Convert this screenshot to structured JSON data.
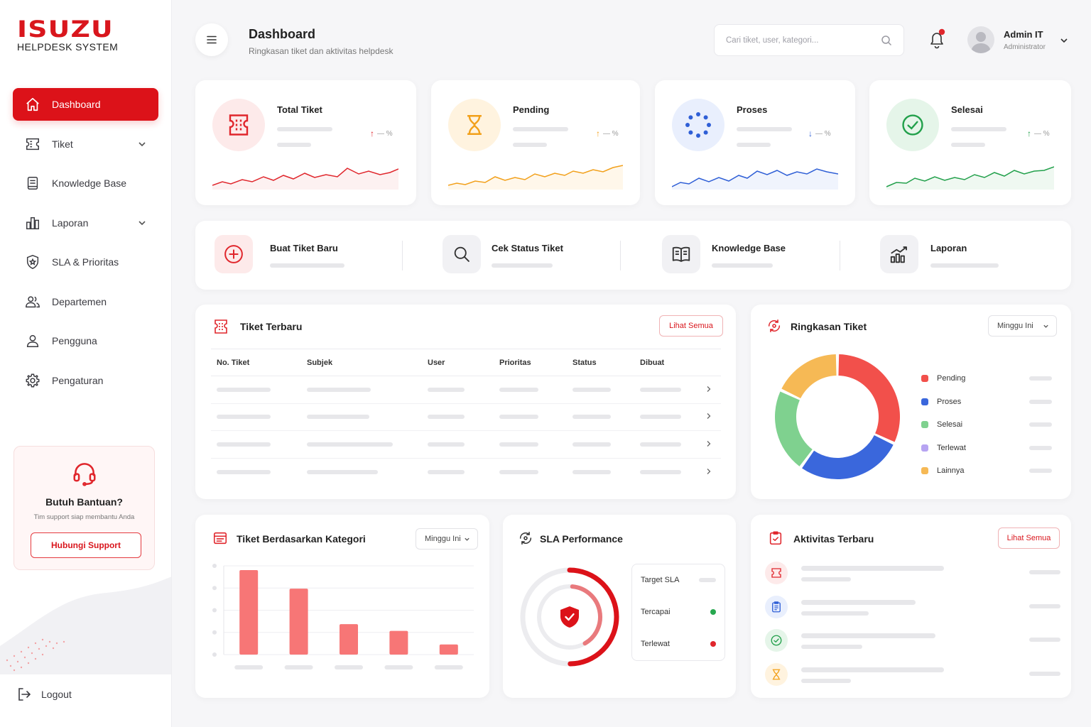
{
  "brand": {
    "logo": "ISUZU",
    "subtitle": "HELPDESK SYSTEM"
  },
  "sidebar": {
    "items": [
      {
        "label": "Dashboard",
        "icon": "home-icon",
        "active": true
      },
      {
        "label": "Tiket",
        "icon": "ticket-icon",
        "expandable": true
      },
      {
        "label": "Knowledge Base",
        "icon": "book-icon"
      },
      {
        "label": "Laporan",
        "icon": "bar-chart-icon",
        "expandable": true
      },
      {
        "label": "SLA & Prioritas",
        "icon": "shield-star-icon"
      },
      {
        "label": "Departemen",
        "icon": "users-icon"
      },
      {
        "label": "Pengguna",
        "icon": "user-icon"
      },
      {
        "label": "Pengaturan",
        "icon": "gear-icon"
      }
    ],
    "help": {
      "title": "Butuh Bantuan?",
      "subtitle": "Tim support siap membantu Anda",
      "button": "Hubungi Support"
    },
    "logout": "Logout"
  },
  "header": {
    "title": "Dashboard",
    "subtitle": "Ringkasan tiket dan aktivitas helpdesk",
    "search_placeholder": "Cari tiket, user, kategori...",
    "user_name": "Admin IT",
    "user_role": "Administrator",
    "has_notification": true
  },
  "stats": [
    {
      "title": "Total Tiket",
      "delta": "— %",
      "trend": "up",
      "color": "#e0262c",
      "icon": "ticket-icon"
    },
    {
      "title": "Pending",
      "delta": "— %",
      "trend": "up",
      "color": "#f2a01a",
      "icon": "hourglass-icon"
    },
    {
      "title": "Proses",
      "delta": "— %",
      "trend": "down",
      "color": "#2f5fd6",
      "icon": "loading-icon"
    },
    {
      "title": "Selesai",
      "delta": "— %",
      "trend": "up",
      "color": "#22a04b",
      "icon": "check-circle-icon"
    }
  ],
  "quick_actions": [
    {
      "label": "Buat Tiket Baru",
      "icon": "plus-circle-icon"
    },
    {
      "label": "Cek Status Tiket",
      "icon": "search-icon"
    },
    {
      "label": "Knowledge Base",
      "icon": "book-open-icon"
    },
    {
      "label": "Laporan",
      "icon": "chart-trend-icon"
    }
  ],
  "recent_tickets": {
    "title": "Tiket Terbaru",
    "view_all": "Lihat Semua",
    "columns": [
      "No. Tiket",
      "Subjek",
      "User",
      "Prioritas",
      "Status",
      "Dibuat"
    ]
  },
  "summary": {
    "title": "Ringkasan Tiket",
    "period": "Minggu Ini",
    "legend": [
      {
        "label": "Pending",
        "color": "#f2504b"
      },
      {
        "label": "Proses",
        "color": "#3a67dc"
      },
      {
        "label": "Selesai",
        "color": "#7fd18f"
      },
      {
        "label": "Terlewat",
        "color": "#b7a4f2"
      },
      {
        "label": "Lainnya",
        "color": "#f6b955"
      }
    ]
  },
  "category_chart": {
    "title": "Tiket Berdasarkan Kategori",
    "period": "Minggu Ini"
  },
  "chart_data": [
    {
      "type": "pie",
      "slices": [
        {
          "label": "Pending",
          "value": 32,
          "color": "#f2504b"
        },
        {
          "label": "Proses",
          "value": 28,
          "color": "#3a67dc"
        },
        {
          "label": "Selesai",
          "value": 22,
          "color": "#7fd18f"
        },
        {
          "label": "Lainnya",
          "value": 18,
          "color": "#f6b955"
        }
      ]
    },
    {
      "type": "bar",
      "categories": [
        "",
        "",
        "",
        "",
        ""
      ],
      "values": [
        100,
        78,
        36,
        28,
        12
      ],
      "ylim": [
        0,
        105
      ],
      "color": "#f77676"
    }
  ],
  "sla": {
    "title": "SLA Performance",
    "rows": [
      {
        "label": "Target SLA",
        "status": "placeholder"
      },
      {
        "label": "Tercapai",
        "status": "#27a84f"
      },
      {
        "label": "Terlewat",
        "status": "#e0262c"
      }
    ],
    "achieved_fraction": 0.6
  },
  "activity": {
    "title": "Aktivitas Terbaru",
    "view_all": "Lihat Semua",
    "items": [
      {
        "icon": "ticket-icon",
        "color": "#e0262c"
      },
      {
        "icon": "clipboard-icon",
        "color": "#2f5fd6"
      },
      {
        "icon": "check-circle-icon",
        "color": "#22a04b"
      },
      {
        "icon": "hourglass-icon",
        "color": "#f2a01a"
      }
    ]
  }
}
